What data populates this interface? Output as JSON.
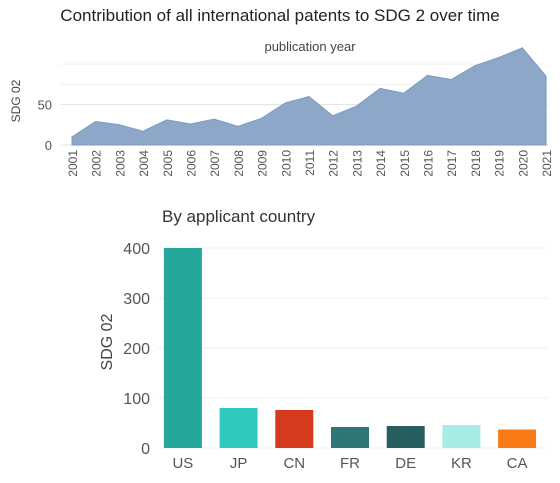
{
  "chart_data": [
    {
      "type": "area",
      "title": "Contribution of all international patents to SDG 2 over time",
      "subtitle": "publication year",
      "ylabel": "SDG 02",
      "xlabel": "",
      "yticks": [
        0,
        50
      ],
      "ylim": [
        0,
        110
      ],
      "color": "#8ca7c8",
      "x": [
        "2001",
        "2002",
        "2003",
        "2004",
        "2005",
        "2006",
        "2007",
        "2008",
        "2009",
        "2010",
        "2011",
        "2012",
        "2013",
        "2014",
        "2015",
        "2016",
        "2017",
        "2018",
        "2019",
        "2020",
        "2021"
      ],
      "series": [
        {
          "name": "",
          "values": [
            10,
            29,
            25,
            17,
            31,
            26,
            32,
            23,
            33,
            52,
            60,
            36,
            48,
            70,
            64,
            86,
            81,
            98,
            108,
            120,
            85
          ]
        }
      ]
    },
    {
      "type": "bar",
      "title": "By applicant country",
      "ylabel": "SDG 02",
      "xlabel": "",
      "yticks": [
        0,
        100,
        200,
        300,
        400
      ],
      "ylim": [
        0,
        400
      ],
      "categories": [
        "US",
        "JP",
        "CN",
        "FR",
        "DE",
        "KR",
        "CA"
      ],
      "values": [
        400,
        80,
        76,
        42,
        44,
        46,
        37
      ],
      "colors": [
        "#26a79c",
        "#2fcabd",
        "#d63a1e",
        "#2f7677",
        "#265d5e",
        "#a8ece6",
        "#f87a17"
      ]
    }
  ]
}
